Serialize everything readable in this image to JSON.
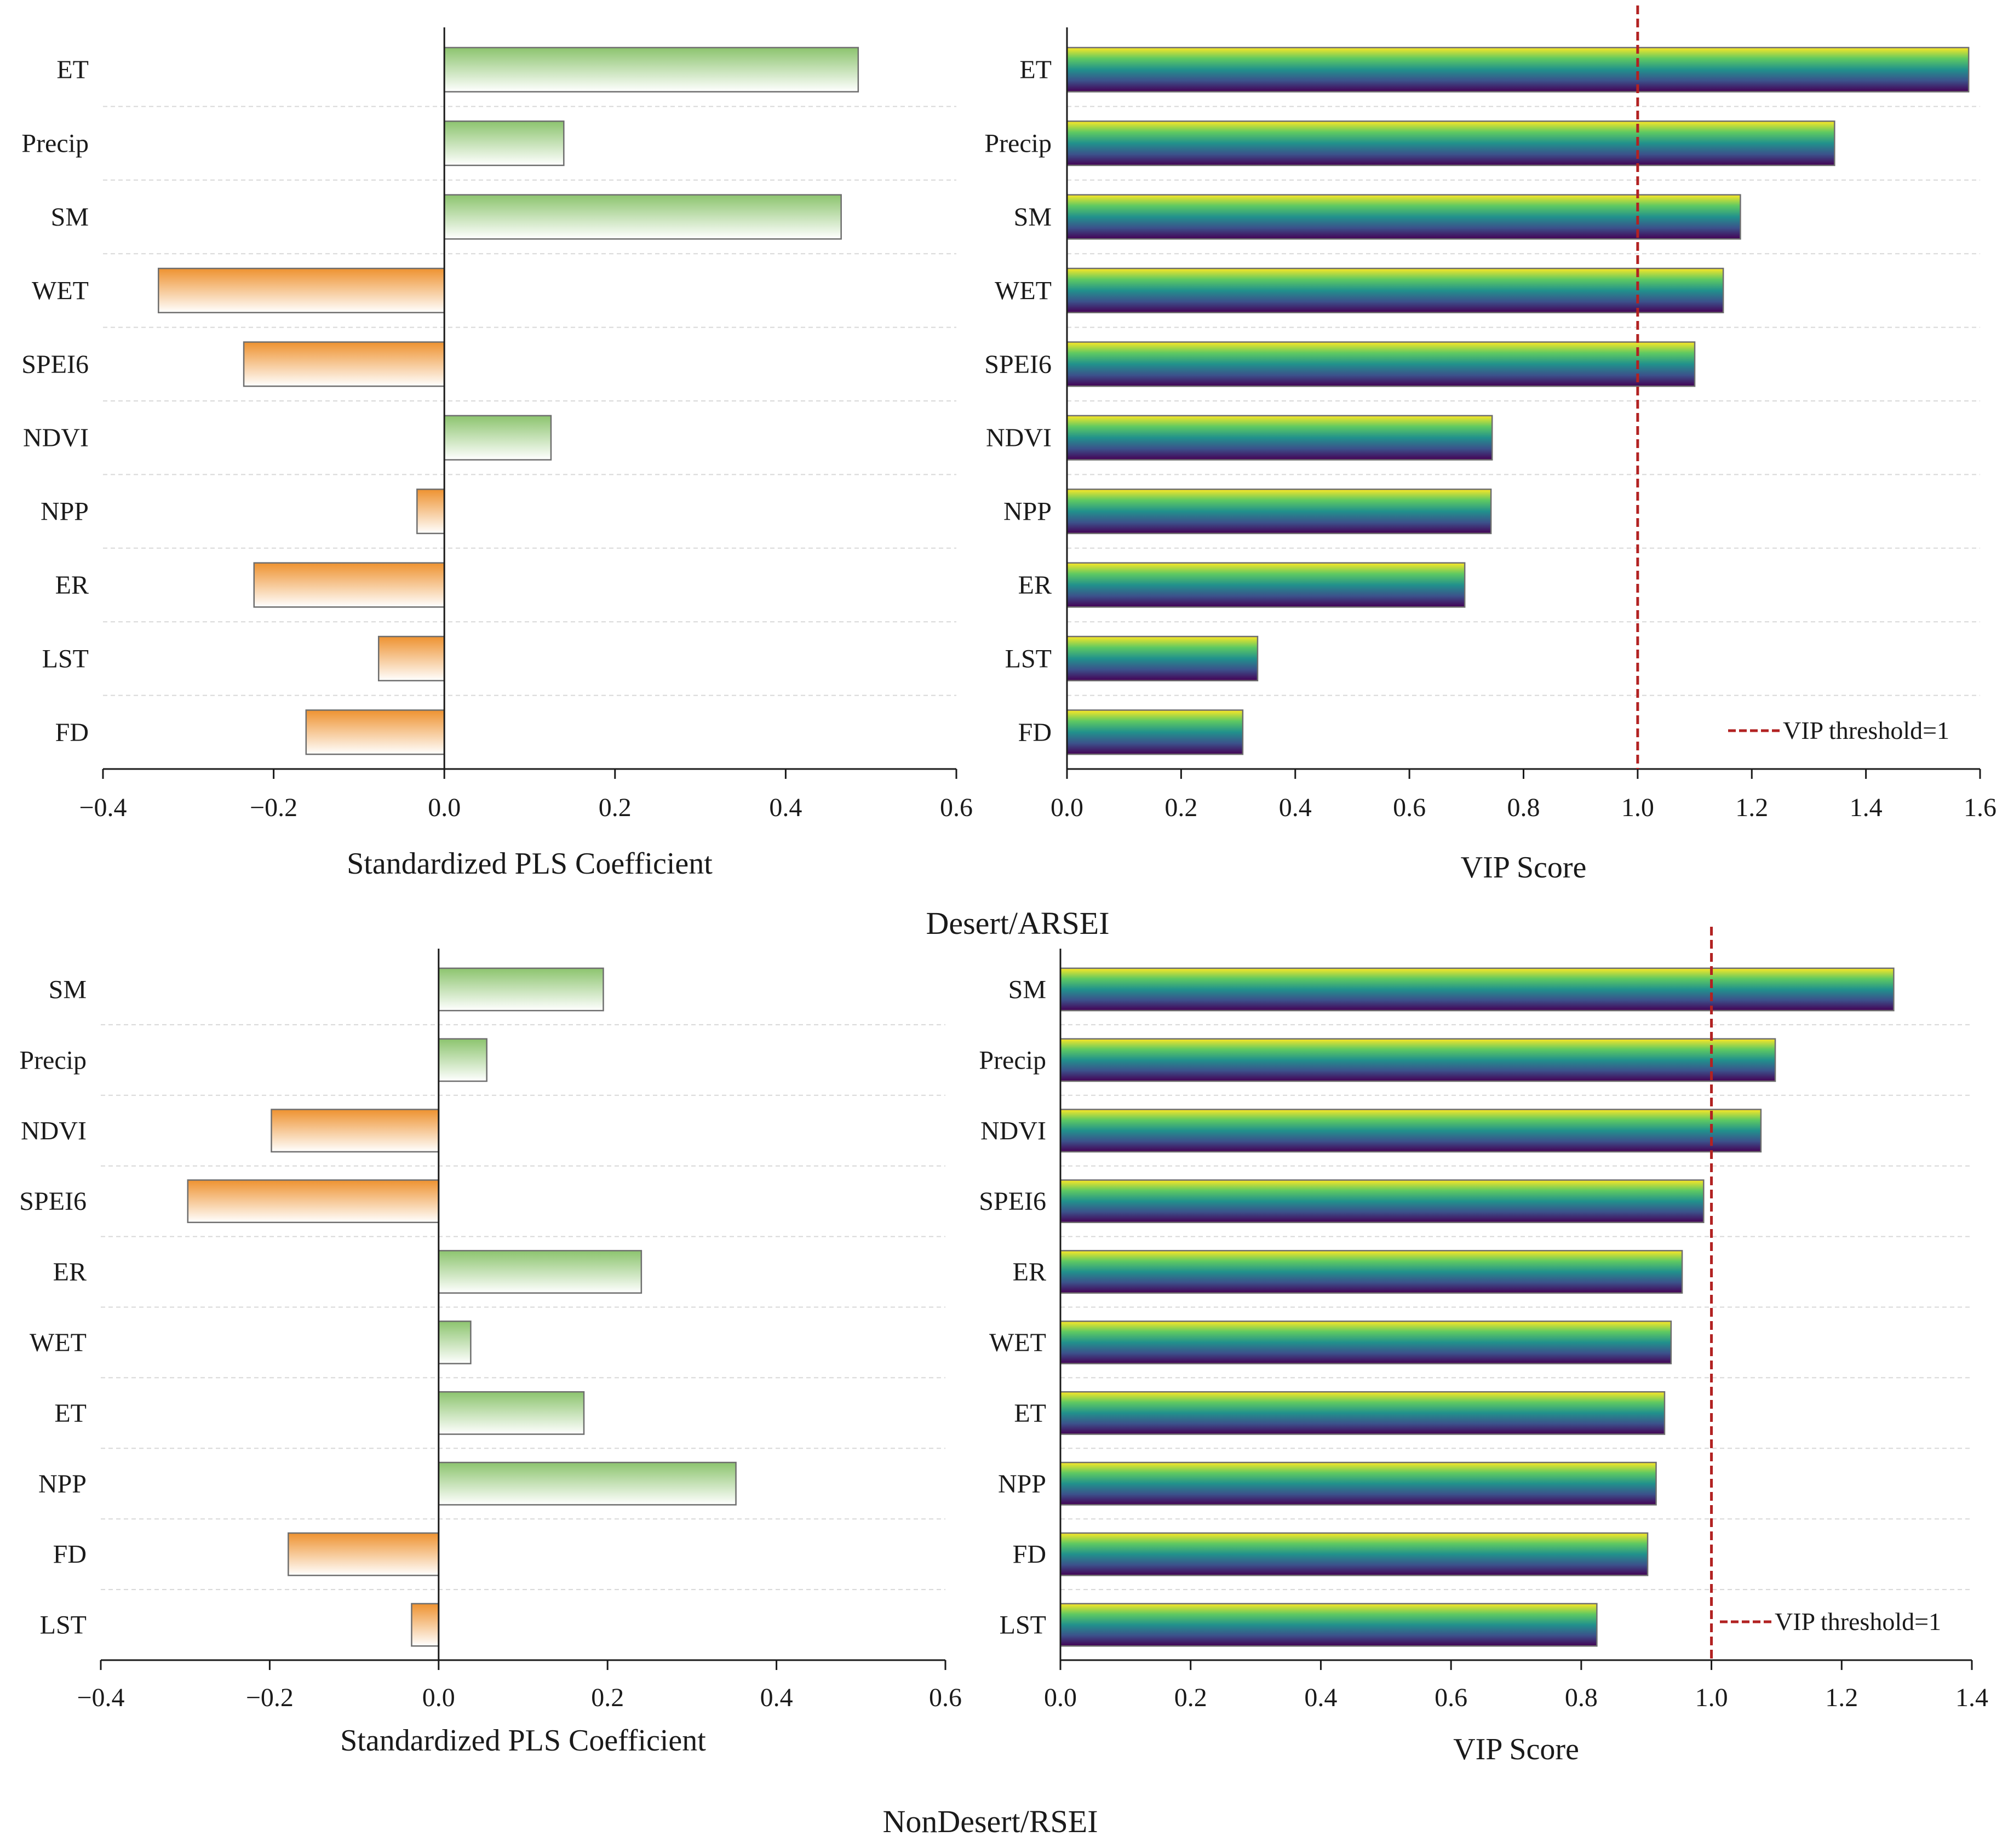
{
  "groups": [
    {
      "title": "Desert/ARSEI"
    },
    {
      "title": "NonDesert/RSEI"
    }
  ],
  "colors": {
    "positive_top": "#8cc46e",
    "positive_bottom": "#ffffff",
    "negative_top": "#ee9230",
    "negative_bottom": "#ffffff",
    "bar_stroke": "#6e6e6e",
    "viridis": [
      "#fde725",
      "#5ec962",
      "#21918c",
      "#3b528b",
      "#440154"
    ],
    "threshold": "#b22222",
    "grid": "#d8d8d8"
  },
  "chart_data": [
    {
      "id": "desert-pls",
      "type": "bar",
      "orientation": "horizontal",
      "categories": [
        "ET",
        "Precip",
        "SM",
        "WET",
        "SPEI6",
        "NDVI",
        "NPP",
        "ER",
        "LST",
        "FD"
      ],
      "values": [
        0.485,
        0.14,
        0.465,
        -0.335,
        -0.235,
        0.125,
        -0.032,
        -0.223,
        -0.077,
        -0.162
      ],
      "xlim": [
        -0.4,
        0.6
      ],
      "xticks": [
        -0.4,
        -0.2,
        0.0,
        0.2,
        0.4,
        0.6
      ],
      "xtick_labels": [
        "−0.4",
        "−0.2",
        "0.0",
        "0.2",
        "0.4",
        "0.6"
      ],
      "xlabel": "Standardized PLS Coefficient",
      "ylabel": "",
      "color_mode": "sign"
    },
    {
      "id": "desert-vip",
      "type": "bar",
      "orientation": "horizontal",
      "categories": [
        "ET",
        "Precip",
        "SM",
        "WET",
        "SPEI6",
        "NDVI",
        "NPP",
        "ER",
        "LST",
        "FD"
      ],
      "values": [
        1.58,
        1.345,
        1.18,
        1.15,
        1.1,
        0.745,
        0.743,
        0.697,
        0.334,
        0.308
      ],
      "xlim": [
        0,
        1.6
      ],
      "xticks": [
        0,
        0.2,
        0.4,
        0.6,
        0.8,
        1.0,
        1.2,
        1.4,
        1.6
      ],
      "xtick_labels": [
        "0.0",
        "0.2",
        "0.4",
        "0.6",
        "0.8",
        "1.0",
        "1.2",
        "1.4",
        "1.6"
      ],
      "xlabel": "VIP Score",
      "ylabel": "",
      "color_mode": "viridis",
      "threshold": 1.0,
      "legend_label": "VIP threshold=1",
      "legend_position": "bottom-right"
    },
    {
      "id": "nondesert-pls",
      "type": "bar",
      "orientation": "horizontal",
      "categories": [
        "SM",
        "Precip",
        "NDVI",
        "SPEI6",
        "ER",
        "WET",
        "ET",
        "NPP",
        "FD",
        "LST"
      ],
      "values": [
        0.195,
        0.057,
        -0.198,
        -0.297,
        0.24,
        0.038,
        0.172,
        0.352,
        -0.178,
        -0.032
      ],
      "xlim": [
        -0.4,
        0.6
      ],
      "xticks": [
        -0.4,
        -0.2,
        0.0,
        0.2,
        0.4,
        0.6
      ],
      "xtick_labels": [
        "−0.4",
        "−0.2",
        "0.0",
        "0.2",
        "0.4",
        "0.6"
      ],
      "xlabel": "Standardized PLS Coefficient",
      "ylabel": "",
      "color_mode": "sign"
    },
    {
      "id": "nondesert-vip",
      "type": "bar",
      "orientation": "horizontal",
      "categories": [
        "SM",
        "Precip",
        "NDVI",
        "SPEI6",
        "ER",
        "WET",
        "ET",
        "NPP",
        "FD",
        "LST"
      ],
      "values": [
        1.28,
        1.098,
        1.076,
        0.988,
        0.955,
        0.938,
        0.928,
        0.915,
        0.902,
        0.824
      ],
      "xlim": [
        0,
        1.4
      ],
      "xticks": [
        0,
        0.2,
        0.4,
        0.6,
        0.8,
        1.0,
        1.2,
        1.4
      ],
      "xtick_labels": [
        "0.0",
        "0.2",
        "0.4",
        "0.6",
        "0.8",
        "1.0",
        "1.2",
        "1.4"
      ],
      "xlabel": "VIP Score",
      "ylabel": "",
      "color_mode": "viridis",
      "threshold": 1.0,
      "legend_label": "VIP threshold=1",
      "legend_position": "bottom-right"
    }
  ]
}
